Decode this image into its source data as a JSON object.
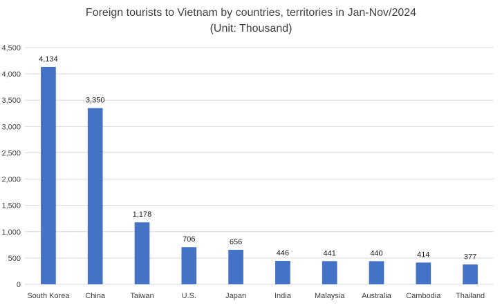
{
  "chart_data": {
    "type": "bar",
    "title_line1": "Foreign tourists to Vietnam by countries, territories in Jan-Nov/2024",
    "title_line2": "(Unit: Thousand)",
    "categories": [
      "South Korea",
      "China",
      "Taiwan",
      "U.S.",
      "Japan",
      "India",
      "Malaysia",
      "Australia",
      "Cambodia",
      "Thailand"
    ],
    "values": [
      4134,
      3350,
      1178,
      706,
      656,
      446,
      441,
      440,
      414,
      377
    ],
    "value_labels": [
      "4,134",
      "3,350",
      "1,178",
      "706",
      "656",
      "446",
      "441",
      "440",
      "414",
      "377"
    ],
    "ylim": [
      0,
      4500
    ],
    "y_ticks": [
      0,
      500,
      1000,
      1500,
      2000,
      2500,
      3000,
      3500,
      4000,
      4500
    ],
    "y_tick_labels": [
      "0",
      "500",
      "1,000",
      "1,500",
      "2,000",
      "2,500",
      "3,000",
      "3,500",
      "4,000",
      "4,500"
    ],
    "grid": true,
    "legend": "none",
    "bar_color": "#4472C4",
    "grid_color": "#D9D9D9"
  }
}
